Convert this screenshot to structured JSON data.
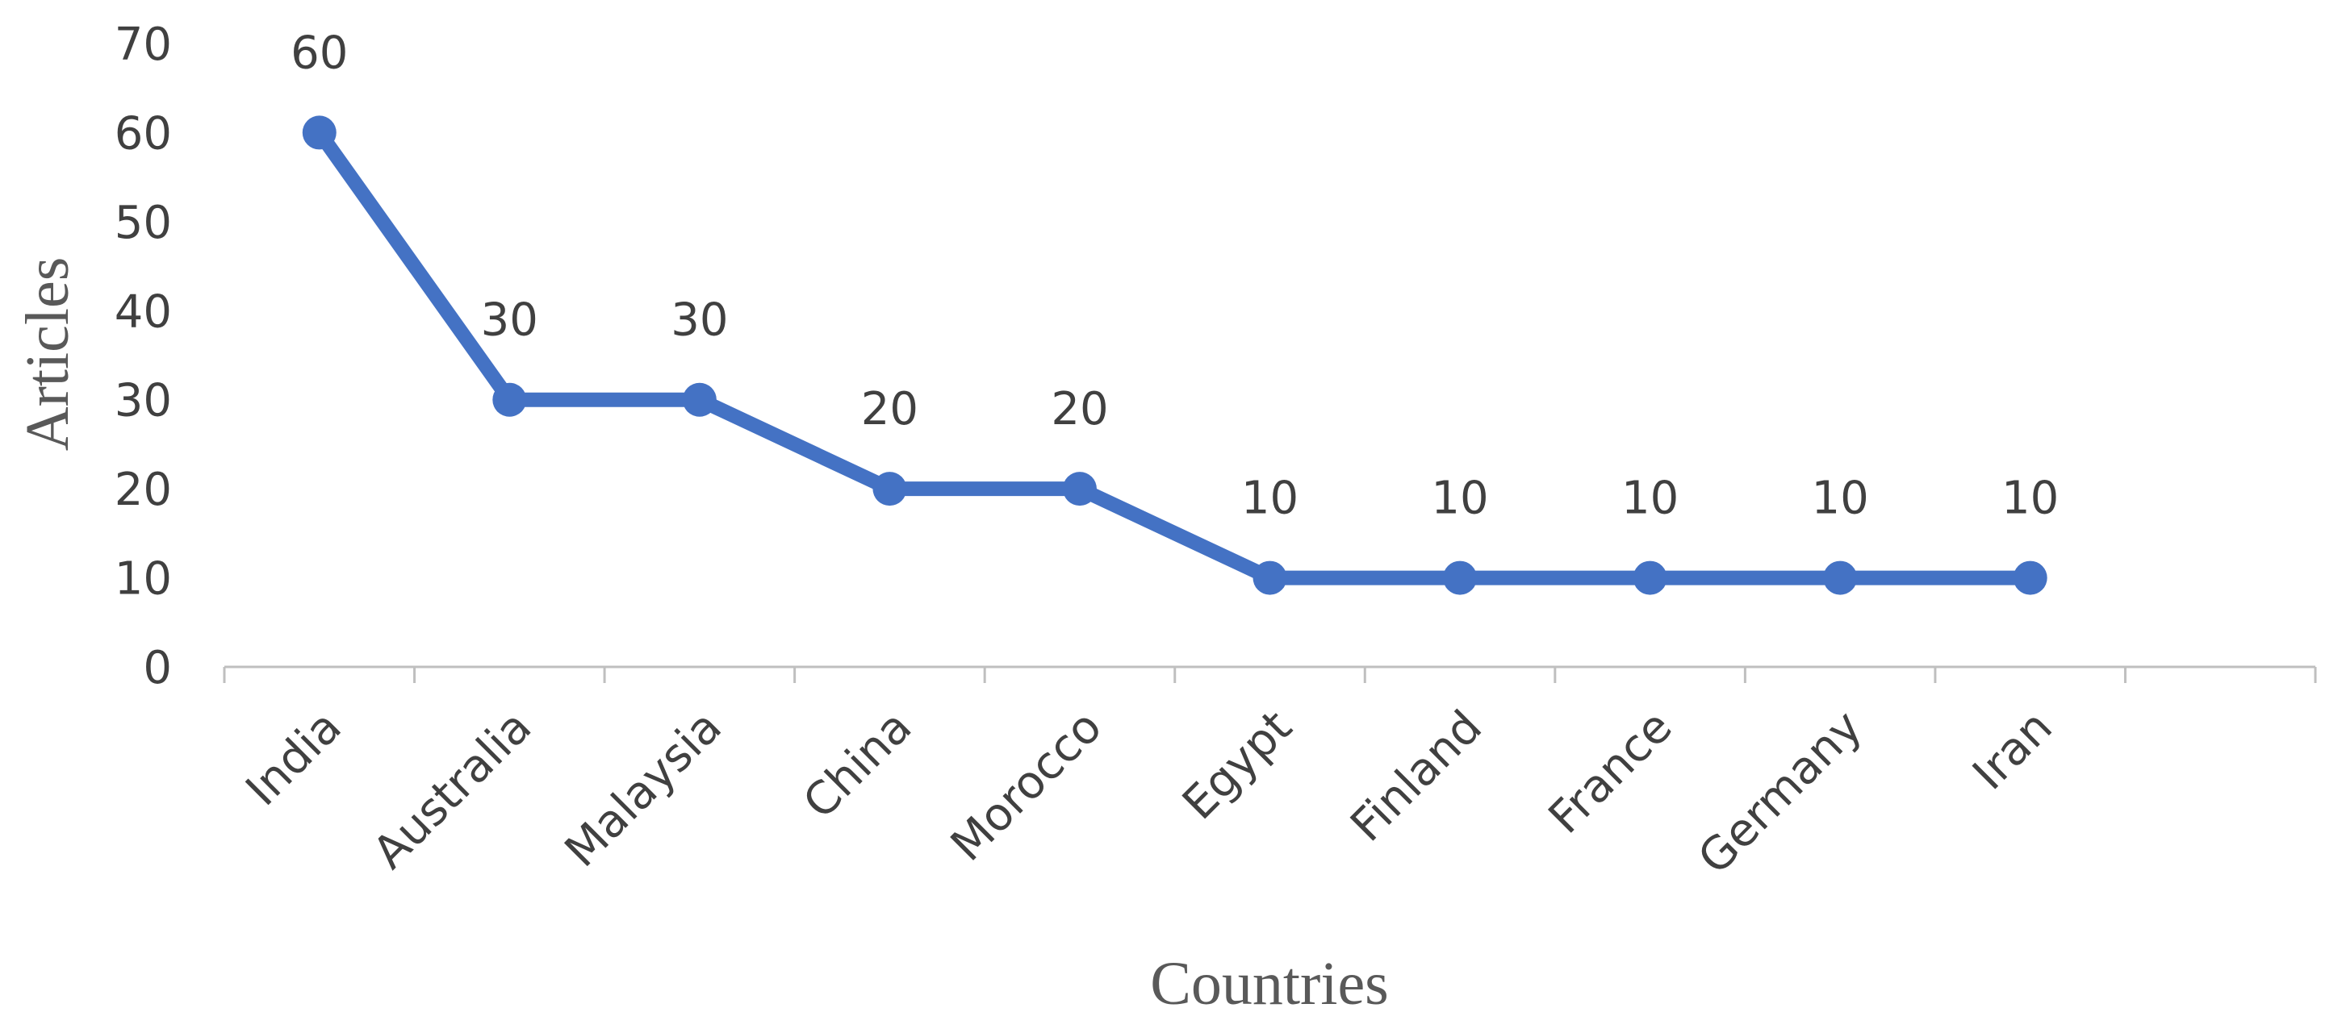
{
  "chart_data": {
    "type": "line",
    "x_label": "Countries",
    "y_label": "Articles",
    "categories": [
      "India",
      "Australia",
      "Malaysia",
      "China",
      "Morocco",
      "Egypt",
      "Finland",
      "France",
      "Germany",
      "Iran",
      null
    ],
    "series": [
      {
        "name": "Articles",
        "color": "#4472c4",
        "values": [
          60,
          30,
          30,
          20,
          20,
          10,
          10,
          10,
          10,
          10,
          null
        ]
      }
    ],
    "ylim": [
      0,
      70
    ],
    "yticks": [
      0,
      10,
      20,
      30,
      40,
      50,
      60,
      70
    ],
    "grid": false,
    "data_labels": true
  }
}
